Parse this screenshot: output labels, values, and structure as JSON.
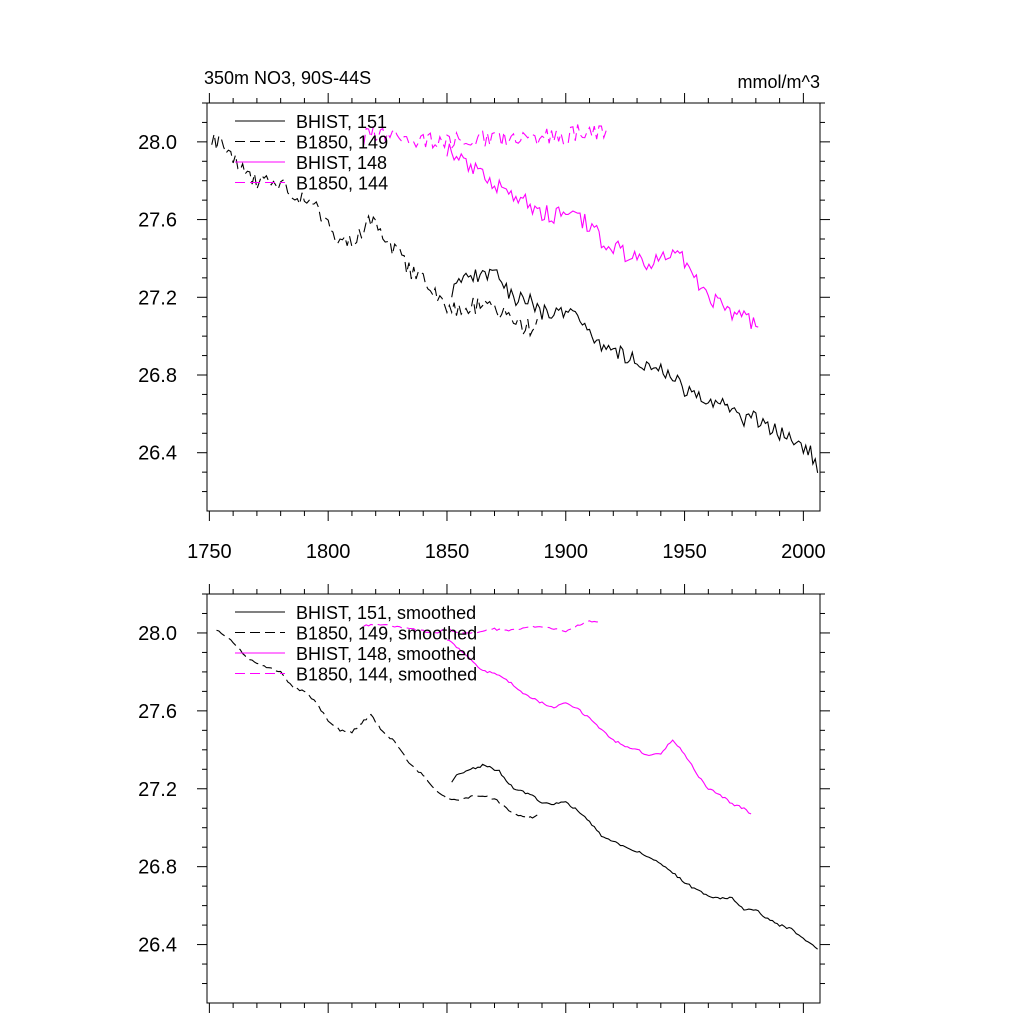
{
  "figure": {
    "title_left": "350m NO3, 90S-44S",
    "title_right": "mmol/m^3"
  },
  "chart_data": [
    {
      "type": "line",
      "title": "350m NO3, 90S-44S",
      "units": "mmol/m^3",
      "xlim": [
        1749,
        2007
      ],
      "ylim": [
        26.1,
        28.2
      ],
      "x_ticks": [
        1750,
        1800,
        1850,
        1900,
        1950,
        2000
      ],
      "x_tick_labels": [
        "1750",
        "1800",
        "1850",
        "1900",
        "1950",
        "2000"
      ],
      "y_ticks": [
        26.4,
        26.8,
        27.2,
        27.6,
        28.0
      ],
      "y_tick_labels": [
        "26.4",
        "26.8",
        "27.2",
        "27.6",
        "28.0"
      ],
      "legend_position": "top-left",
      "series": [
        {
          "name": "BHIST, 151",
          "color": "#000000",
          "dash": "solid",
          "noise": 0.04,
          "x": [
            1852,
            1855,
            1860,
            1865,
            1868,
            1872,
            1878,
            1885,
            1890,
            1895,
            1900,
            1905,
            1910,
            1915,
            1920,
            1925,
            1930,
            1935,
            1940,
            1945,
            1950,
            1955,
            1960,
            1965,
            1970,
            1975,
            1980,
            1985,
            1990,
            1995,
            2000,
            2003,
            2006
          ],
          "y": [
            27.24,
            27.28,
            27.3,
            27.33,
            27.32,
            27.3,
            27.2,
            27.18,
            27.12,
            27.12,
            27.14,
            27.1,
            27.03,
            26.95,
            26.93,
            26.9,
            26.88,
            26.85,
            26.82,
            26.78,
            26.73,
            26.68,
            26.65,
            26.64,
            26.64,
            26.57,
            26.58,
            26.53,
            26.5,
            26.47,
            26.42,
            26.4,
            26.32
          ]
        },
        {
          "name": "B1850, 149",
          "color": "#000000",
          "dash": "dashed",
          "noise": 0.045,
          "x": [
            1751,
            1755,
            1760,
            1765,
            1770,
            1775,
            1780,
            1785,
            1790,
            1795,
            1800,
            1805,
            1810,
            1815,
            1818,
            1822,
            1828,
            1835,
            1840,
            1845,
            1850,
            1855,
            1860,
            1865,
            1870,
            1875,
            1880,
            1885,
            1888
          ],
          "y": [
            28.03,
            27.98,
            27.92,
            27.86,
            27.8,
            27.82,
            27.78,
            27.72,
            27.71,
            27.65,
            27.56,
            27.5,
            27.49,
            27.56,
            27.59,
            27.52,
            27.45,
            27.32,
            27.28,
            27.22,
            27.16,
            27.14,
            27.15,
            27.17,
            27.15,
            27.1,
            27.06,
            27.04,
            27.05
          ]
        },
        {
          "name": "BHIST, 148",
          "color": "#ff00ff",
          "dash": "solid",
          "noise": 0.045,
          "x": [
            1850,
            1855,
            1860,
            1865,
            1870,
            1875,
            1880,
            1885,
            1890,
            1895,
            1900,
            1905,
            1910,
            1915,
            1920,
            1925,
            1930,
            1935,
            1940,
            1945,
            1950,
            1955,
            1960,
            1965,
            1970,
            1975,
            1978,
            1981
          ],
          "y": [
            27.97,
            27.92,
            27.87,
            27.82,
            27.79,
            27.76,
            27.72,
            27.68,
            27.64,
            27.62,
            27.65,
            27.62,
            27.57,
            27.5,
            27.46,
            27.42,
            27.4,
            27.37,
            27.39,
            27.45,
            27.38,
            27.28,
            27.2,
            27.17,
            27.12,
            27.1,
            27.08,
            27.07
          ]
        },
        {
          "name": "B1850, 144",
          "color": "#ff00ff",
          "dash": "dashed",
          "noise": 0.045,
          "x": [
            1815,
            1820,
            1825,
            1830,
            1835,
            1840,
            1845,
            1850,
            1855,
            1860,
            1865,
            1870,
            1875,
            1880,
            1885,
            1890,
            1895,
            1900,
            1905,
            1910,
            1915,
            1917
          ],
          "y": [
            28.03,
            28.04,
            28.04,
            28.03,
            28.02,
            28.01,
            28.0,
            28.02,
            28.0,
            28.0,
            28.01,
            28.02,
            28.01,
            28.01,
            28.02,
            28.03,
            28.04,
            28.03,
            28.05,
            28.06,
            28.05,
            28.05
          ]
        }
      ]
    },
    {
      "type": "line",
      "title": "",
      "xlim": [
        1749,
        2007
      ],
      "ylim": [
        26.1,
        28.2
      ],
      "x_ticks": [
        1750,
        1800,
        1850,
        1900,
        1950,
        2000
      ],
      "x_tick_labels": [],
      "y_ticks": [
        26.4,
        26.8,
        27.2,
        27.6,
        28.0
      ],
      "y_tick_labels": [
        "26.4",
        "26.8",
        "27.2",
        "27.6",
        "28.0"
      ],
      "legend_position": "top-left",
      "series": [
        {
          "name": "BHIST, 151, smoothed",
          "color": "#000000",
          "dash": "solid",
          "noise": 0.006,
          "x": [
            1852,
            1855,
            1860,
            1865,
            1868,
            1872,
            1878,
            1885,
            1890,
            1895,
            1900,
            1905,
            1910,
            1915,
            1920,
            1925,
            1930,
            1935,
            1940,
            1945,
            1950,
            1955,
            1960,
            1965,
            1970,
            1975,
            1980,
            1985,
            1990,
            1995,
            2000,
            2003,
            2006
          ],
          "y": [
            27.24,
            27.28,
            27.3,
            27.32,
            27.31,
            27.29,
            27.2,
            27.17,
            27.13,
            27.12,
            27.13,
            27.09,
            27.03,
            26.96,
            26.93,
            26.9,
            26.88,
            26.85,
            26.81,
            26.77,
            26.72,
            26.68,
            26.65,
            26.64,
            26.64,
            26.58,
            26.58,
            26.53,
            26.5,
            26.48,
            26.43,
            26.41,
            26.38
          ]
        },
        {
          "name": "B1850, 149, smoothed",
          "color": "#000000",
          "dash": "dashed",
          "noise": 0.006,
          "x": [
            1753,
            1756,
            1760,
            1765,
            1770,
            1775,
            1780,
            1785,
            1790,
            1795,
            1800,
            1805,
            1810,
            1815,
            1818,
            1822,
            1828,
            1835,
            1840,
            1845,
            1850,
            1855,
            1860,
            1865,
            1870,
            1875,
            1880,
            1884,
            1888
          ],
          "y": [
            28.02,
            27.99,
            27.95,
            27.88,
            27.84,
            27.82,
            27.8,
            27.72,
            27.7,
            27.64,
            27.55,
            27.5,
            27.49,
            27.55,
            27.58,
            27.51,
            27.44,
            27.32,
            27.27,
            27.2,
            27.15,
            27.14,
            27.16,
            27.16,
            27.15,
            27.1,
            27.06,
            27.05,
            27.06
          ]
        },
        {
          "name": "BHIST, 148, smoothed",
          "color": "#ff00ff",
          "dash": "solid",
          "noise": 0.006,
          "x": [
            1850,
            1855,
            1860,
            1865,
            1870,
            1875,
            1880,
            1885,
            1890,
            1895,
            1900,
            1905,
            1910,
            1915,
            1920,
            1925,
            1930,
            1935,
            1940,
            1945,
            1950,
            1955,
            1960,
            1965,
            1970,
            1975,
            1978
          ],
          "y": [
            27.97,
            27.92,
            27.86,
            27.81,
            27.79,
            27.76,
            27.71,
            27.67,
            27.64,
            27.62,
            27.64,
            27.61,
            27.56,
            27.5,
            27.45,
            27.42,
            27.4,
            27.37,
            27.38,
            27.45,
            27.38,
            27.28,
            27.2,
            27.17,
            27.12,
            27.1,
            27.07
          ]
        },
        {
          "name": "B1850, 144, smoothed",
          "color": "#ff00ff",
          "dash": "dashed",
          "noise": 0.005,
          "x": [
            1815,
            1820,
            1825,
            1830,
            1835,
            1840,
            1845,
            1850,
            1855,
            1860,
            1865,
            1870,
            1875,
            1880,
            1885,
            1890,
            1895,
            1900,
            1905,
            1910,
            1915
          ],
          "y": [
            28.04,
            28.04,
            28.04,
            28.03,
            28.02,
            28.01,
            28.0,
            28.02,
            28.0,
            28.0,
            28.01,
            28.02,
            28.01,
            28.02,
            28.03,
            28.03,
            28.02,
            28.01,
            28.04,
            28.06,
            28.06
          ]
        }
      ]
    }
  ]
}
